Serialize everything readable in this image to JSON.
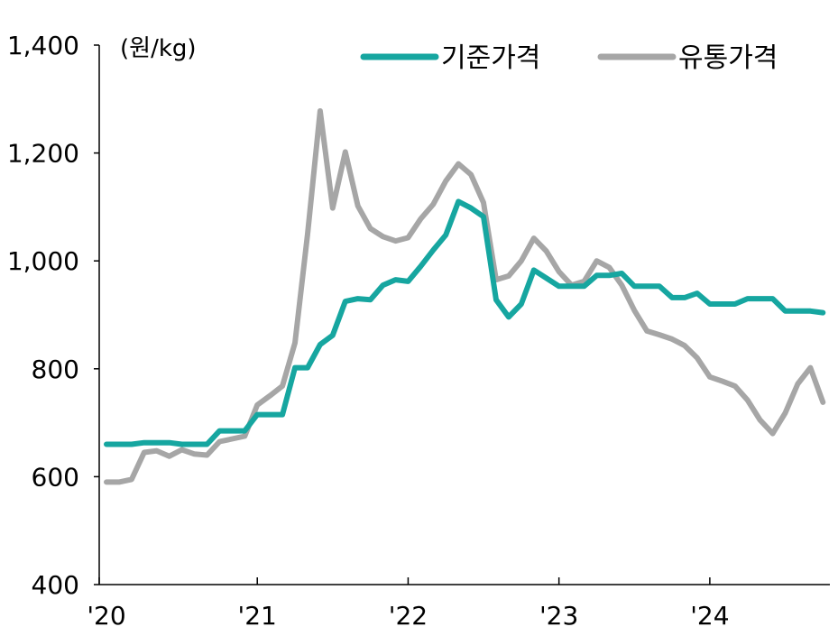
{
  "chart_data": {
    "type": "line",
    "unit_label": "(원/kg)",
    "ylim": [
      400,
      1400
    ],
    "yticks": [
      400,
      600,
      800,
      1000,
      1200,
      1400
    ],
    "ytick_labels": [
      "400",
      "600",
      "800",
      "1,000",
      "1,200",
      "1,400"
    ],
    "xlim": [
      "2020-01",
      "2024-10"
    ],
    "xticks": [
      "2020-01",
      "2021-01",
      "2022-01",
      "2023-01",
      "2024-01"
    ],
    "xtick_labels": [
      "'20",
      "'21",
      "'22",
      "'23",
      "'24"
    ],
    "grid": false,
    "legend_position": "top-right",
    "x": [
      "2020-01",
      "2020-02",
      "2020-03",
      "2020-04",
      "2020-05",
      "2020-06",
      "2020-07",
      "2020-08",
      "2020-09",
      "2020-10",
      "2020-11",
      "2020-12",
      "2021-01",
      "2021-02",
      "2021-03",
      "2021-04",
      "2021-05",
      "2021-06",
      "2021-07",
      "2021-08",
      "2021-09",
      "2021-10",
      "2021-11",
      "2021-12",
      "2022-01",
      "2022-02",
      "2022-03",
      "2022-04",
      "2022-05",
      "2022-06",
      "2022-07",
      "2022-08",
      "2022-09",
      "2022-10",
      "2022-11",
      "2022-12",
      "2023-01",
      "2023-02",
      "2023-03",
      "2023-04",
      "2023-05",
      "2023-06",
      "2023-07",
      "2023-08",
      "2023-09",
      "2023-10",
      "2023-11",
      "2023-12",
      "2024-01",
      "2024-02",
      "2024-03",
      "2024-04",
      "2024-05",
      "2024-06",
      "2024-07",
      "2024-08",
      "2024-09",
      "2024-10"
    ],
    "series": [
      {
        "name": "기준가격",
        "color": "#16A6A0",
        "values": [
          660,
          660,
          660,
          663,
          663,
          663,
          660,
          660,
          660,
          685,
          685,
          685,
          715,
          715,
          715,
          802,
          802,
          845,
          862,
          925,
          930,
          928,
          955,
          965,
          962,
          990,
          1020,
          1048,
          1110,
          1098,
          1082,
          928,
          896,
          920,
          983,
          968,
          953,
          953,
          953,
          973,
          973,
          977,
          953,
          953,
          953,
          932,
          932,
          940,
          920,
          920,
          920,
          930,
          930,
          930,
          907,
          907,
          907,
          904
        ]
      },
      {
        "name": "유통가격",
        "color": "#A6A6A6",
        "values": [
          590,
          590,
          595,
          645,
          648,
          638,
          650,
          642,
          640,
          665,
          670,
          675,
          733,
          750,
          768,
          848,
          1050,
          1278,
          1098,
          1202,
          1102,
          1060,
          1045,
          1037,
          1043,
          1078,
          1105,
          1148,
          1180,
          1160,
          1108,
          965,
          972,
          1000,
          1042,
          1018,
          980,
          955,
          962,
          1000,
          988,
          955,
          908,
          870,
          863,
          855,
          843,
          820,
          785,
          777,
          768,
          742,
          705,
          680,
          718,
          772,
          802,
          738
        ]
      }
    ]
  }
}
